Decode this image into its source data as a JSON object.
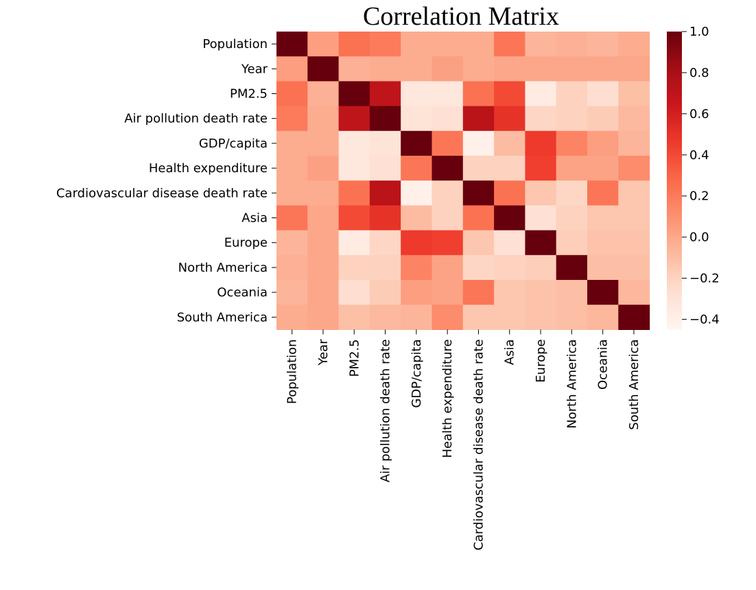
{
  "chart_data": {
    "type": "heatmap",
    "title": "Correlation Matrix",
    "xlabel": "",
    "ylabel": "",
    "labels": [
      "Population",
      "Year",
      "PM2.5",
      "Air pollution death rate",
      "GDP/capita",
      "Health expenditure",
      "Cardiovascular disease death rate",
      "Asia",
      "Europe",
      "North America",
      "Oceania",
      "South America"
    ],
    "values": [
      [
        1.0,
        0.04,
        0.24,
        0.2,
        -0.02,
        -0.02,
        -0.02,
        0.22,
        -0.06,
        -0.04,
        -0.06,
        -0.02
      ],
      [
        0.04,
        1.0,
        -0.04,
        -0.02,
        -0.02,
        0.03,
        -0.02,
        0.0,
        0.0,
        0.0,
        0.0,
        0.0
      ],
      [
        0.24,
        -0.04,
        1.0,
        0.7,
        -0.33,
        -0.33,
        0.24,
        0.4,
        -0.36,
        -0.2,
        -0.26,
        -0.11
      ],
      [
        0.2,
        -0.02,
        0.7,
        1.0,
        -0.3,
        -0.28,
        0.72,
        0.5,
        -0.22,
        -0.2,
        -0.17,
        -0.08
      ],
      [
        -0.02,
        -0.02,
        -0.33,
        -0.3,
        1.0,
        0.22,
        -0.41,
        -0.09,
        0.46,
        0.16,
        0.04,
        -0.06
      ],
      [
        -0.02,
        0.03,
        -0.33,
        -0.28,
        0.22,
        1.0,
        -0.2,
        -0.2,
        0.44,
        0.02,
        0.02,
        0.12
      ],
      [
        -0.02,
        -0.02,
        0.24,
        0.72,
        -0.41,
        -0.2,
        1.0,
        0.24,
        -0.14,
        -0.22,
        0.22,
        -0.14
      ],
      [
        0.22,
        0.0,
        0.4,
        0.5,
        -0.09,
        -0.2,
        0.24,
        1.0,
        -0.28,
        -0.2,
        -0.14,
        -0.14
      ],
      [
        -0.06,
        0.0,
        -0.36,
        -0.22,
        0.46,
        0.44,
        -0.14,
        -0.28,
        1.0,
        -0.18,
        -0.12,
        -0.12
      ],
      [
        -0.04,
        0.0,
        -0.2,
        -0.2,
        0.16,
        0.02,
        -0.22,
        -0.2,
        -0.18,
        1.0,
        -0.1,
        -0.1
      ],
      [
        -0.06,
        0.0,
        -0.26,
        -0.17,
        0.04,
        0.02,
        0.22,
        -0.14,
        -0.12,
        -0.1,
        1.0,
        -0.07
      ],
      [
        -0.02,
        0.0,
        -0.11,
        -0.08,
        -0.06,
        0.12,
        -0.14,
        -0.14,
        -0.12,
        -0.1,
        -0.07,
        1.0
      ]
    ],
    "colorbar": {
      "min": -0.45,
      "max": 1.0,
      "ticks": [
        1.0,
        0.8,
        0.6,
        0.4,
        0.2,
        0.0,
        -0.2,
        -0.4
      ],
      "tick_labels": [
        "1.0",
        "0.8",
        "0.6",
        "0.4",
        "0.2",
        "0.0",
        "−0.2",
        "−0.4"
      ],
      "colormap": "Reds"
    }
  }
}
